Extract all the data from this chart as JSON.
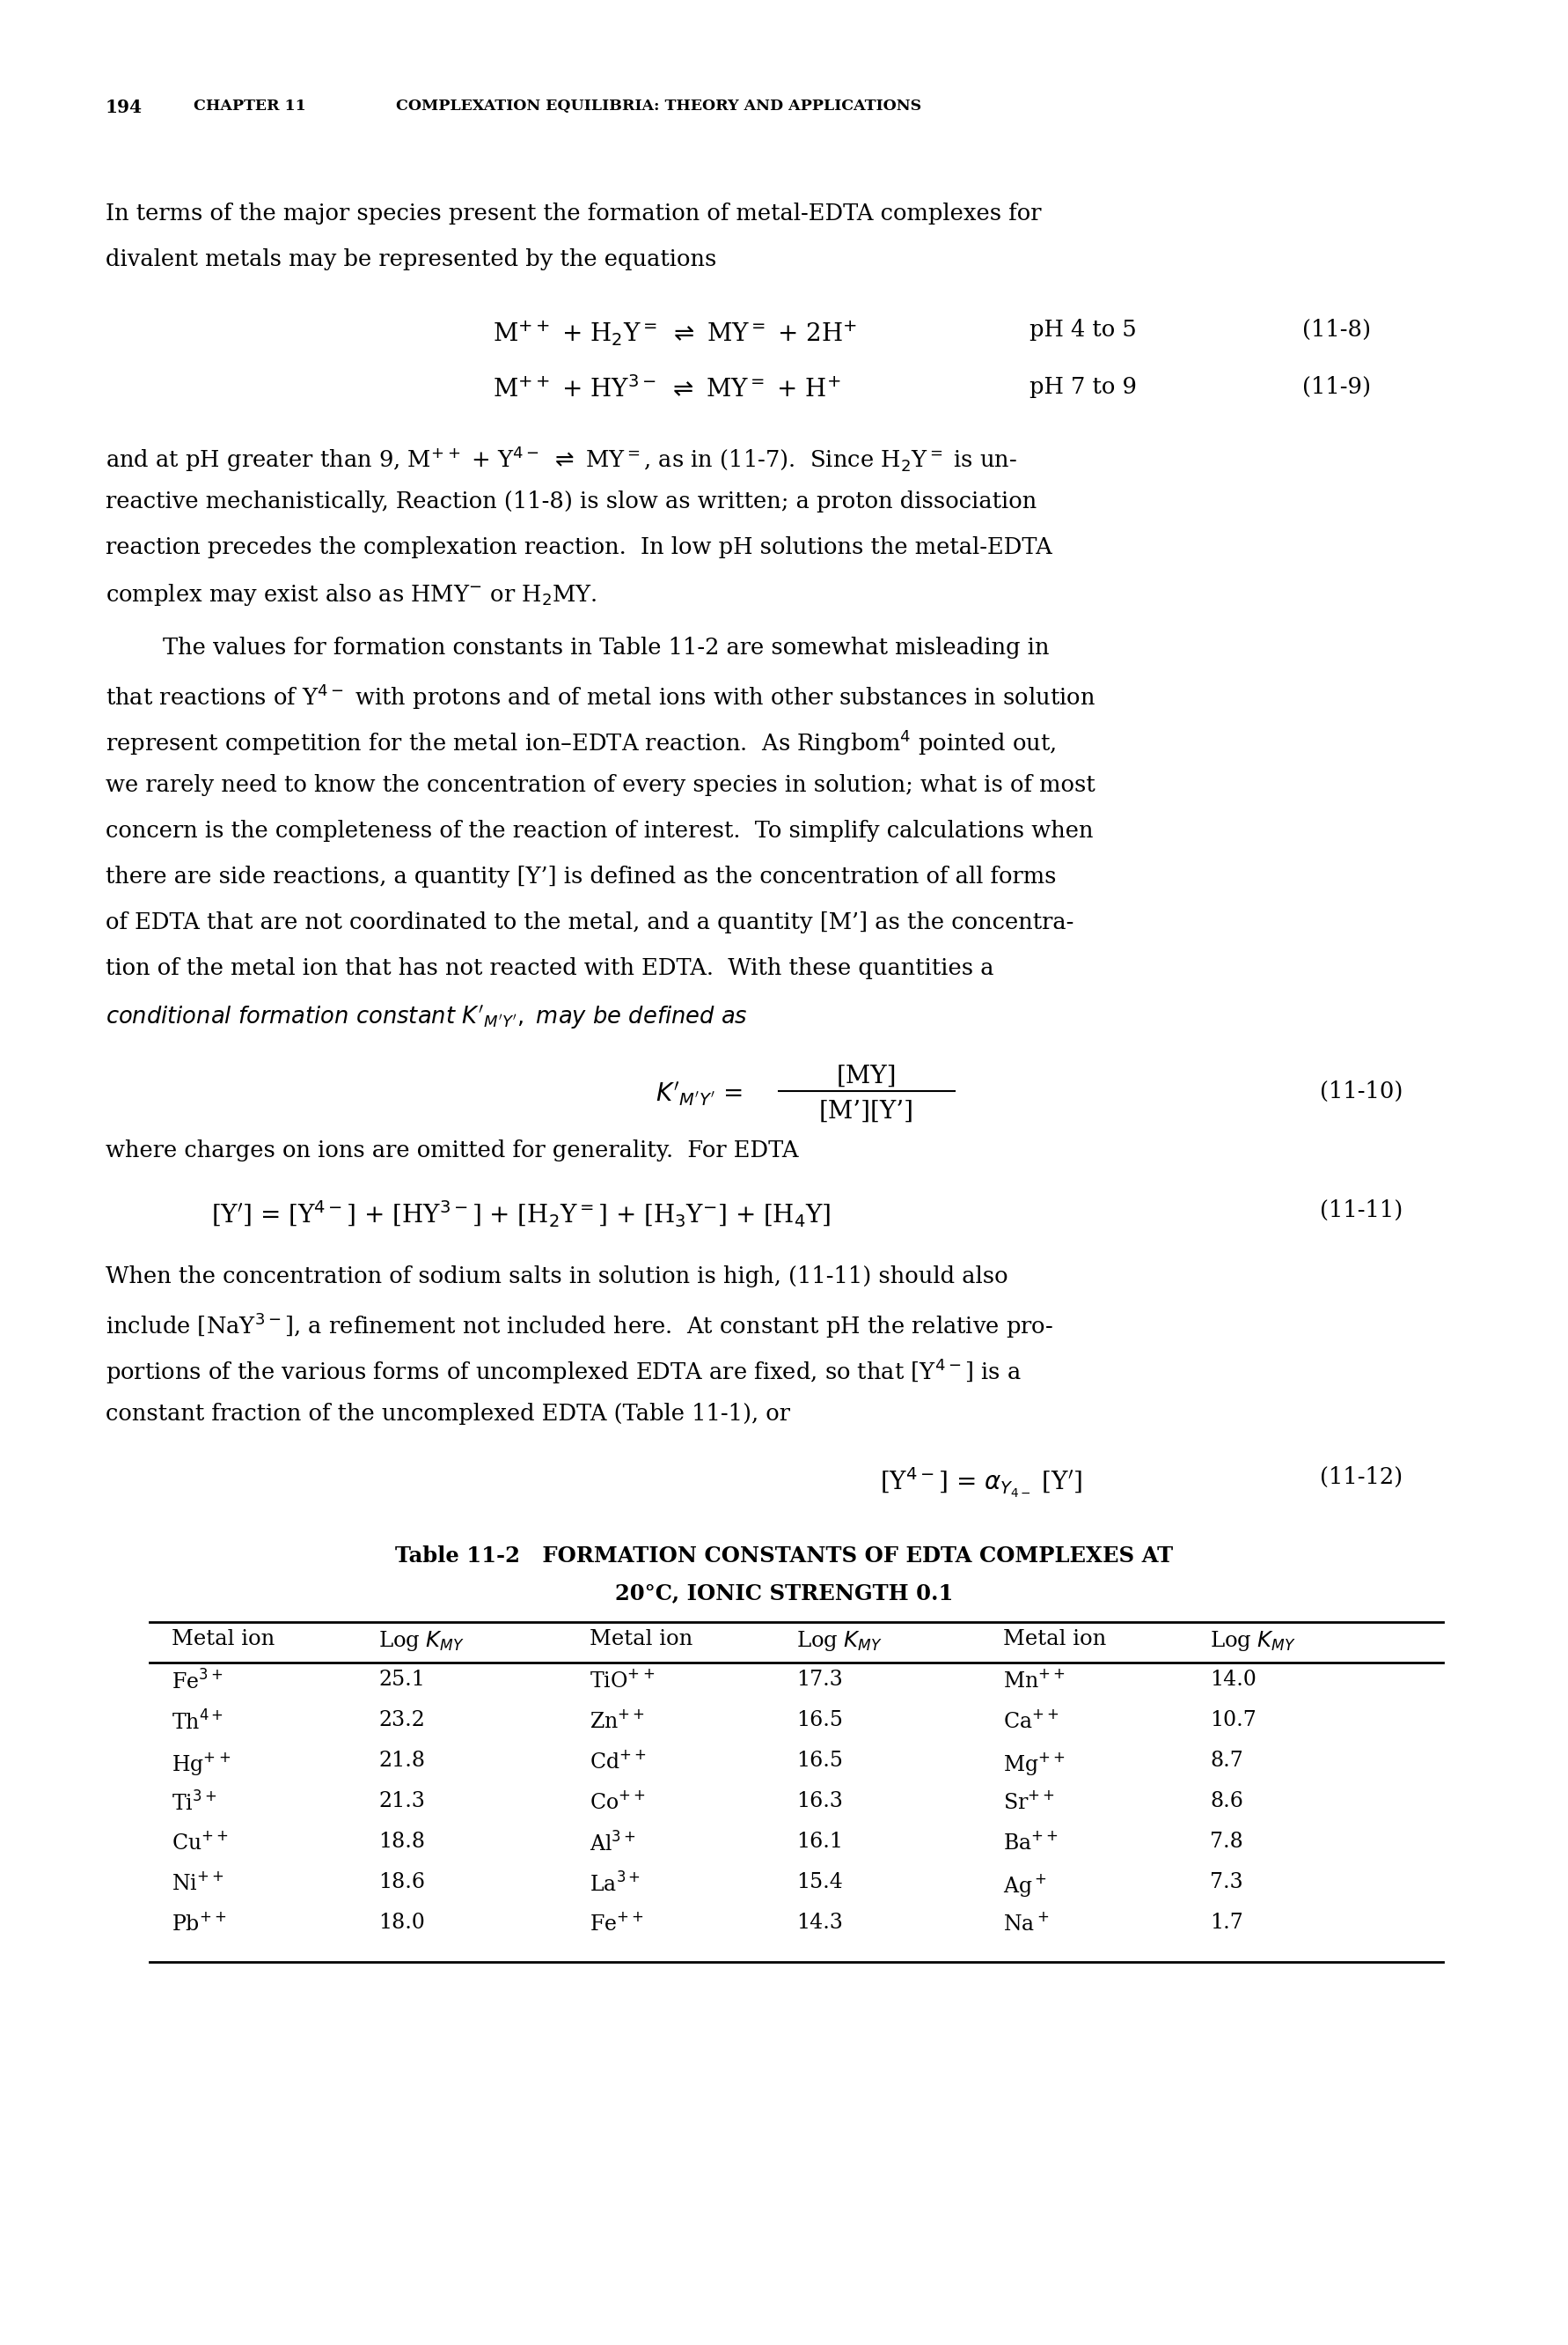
{
  "page_number": "194",
  "chapter_header_num": "CHAPTER 11",
  "chapter_header_title": "COMPLEXATION EQUILIBRIA: THEORY AND APPLICATIONS",
  "bg_color": "#ffffff",
  "text_color": "#000000",
  "header_fontsize": 13.0,
  "body_fontsize": 18.5,
  "eq_fontsize": 20.0,
  "table_header_fontsize": 17.5,
  "table_data_fontsize": 17.0,
  "table_title_fontsize": 17.5,
  "table_col1": [
    "Fe$^{3+}$",
    "Th$^{4+}$",
    "Hg$^{++}$",
    "Ti$^{3+}$",
    "Cu$^{++}$",
    "Ni$^{++}$",
    "Pb$^{++}$"
  ],
  "table_val1": [
    "25.1",
    "23.2",
    "21.8",
    "21.3",
    "18.8",
    "18.6",
    "18.0"
  ],
  "table_col2": [
    "TiO$^{++}$",
    "Zn$^{++}$",
    "Cd$^{++}$",
    "Co$^{++}$",
    "Al$^{3+}$",
    "La$^{3+}$",
    "Fe$^{++}$"
  ],
  "table_val2": [
    "17.3",
    "16.5",
    "16.5",
    "16.3",
    "16.1",
    "15.4",
    "14.3"
  ],
  "table_col3": [
    "Mn$^{++}$",
    "Ca$^{++}$",
    "Mg$^{++}$",
    "Sr$^{++}$",
    "Ba$^{++}$",
    "Ag$^+$",
    "Na$^+$"
  ],
  "table_val3": [
    "14.0",
    "10.7",
    "8.7",
    "8.6",
    "7.8",
    "7.3",
    "1.7"
  ]
}
